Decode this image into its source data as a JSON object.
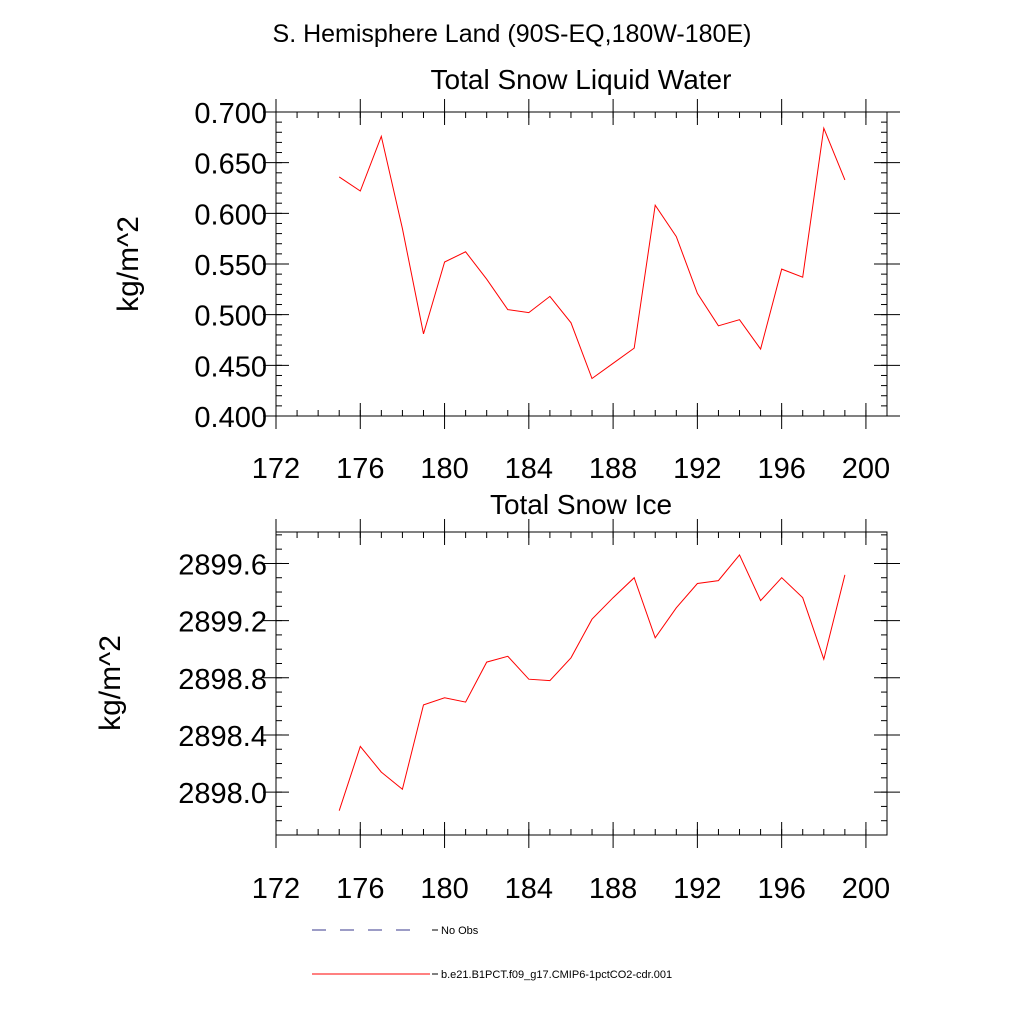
{
  "page_title": "S. Hemisphere Land (90S-EQ,180W-180E)",
  "chart_data": [
    {
      "type": "line",
      "title": "Total Snow Liquid Water",
      "xlabel": "",
      "ylabel": "kg/m^2",
      "xlim": [
        172,
        201
      ],
      "ylim": [
        0.4,
        0.7
      ],
      "x_ticks": [
        172,
        176,
        180,
        184,
        188,
        192,
        196,
        200
      ],
      "x_tick_labels": [
        "172",
        "176",
        "180",
        "184",
        "188",
        "192",
        "196",
        "200"
      ],
      "y_ticks": [
        0.4,
        0.45,
        0.5,
        0.55,
        0.6,
        0.65,
        0.7
      ],
      "y_tick_labels": [
        "0.400",
        "0.450",
        "0.500",
        "0.550",
        "0.600",
        "0.650",
        "0.700"
      ],
      "y_minor_step": 0.01,
      "x_minor_step": 1,
      "series": [
        {
          "name": "b.e21.B1PCT.f09_g17.CMIP6-1pctCO2-cdr.001",
          "color": "#ff0000",
          "x": [
            175,
            176,
            177,
            178,
            179,
            180,
            181,
            182,
            183,
            184,
            185,
            186,
            187,
            188,
            189,
            190,
            191,
            192,
            193,
            194,
            195,
            196,
            197,
            198,
            199
          ],
          "y": [
            0.636,
            0.622,
            0.676,
            0.585,
            0.481,
            0.552,
            0.562,
            0.535,
            0.505,
            0.502,
            0.518,
            0.492,
            0.437,
            0.452,
            0.467,
            0.608,
            0.577,
            0.521,
            0.489,
            0.495,
            0.466,
            0.545,
            0.537,
            0.684,
            0.633
          ]
        }
      ]
    },
    {
      "type": "line",
      "title": "Total Snow Ice",
      "xlabel": "",
      "ylabel": "kg/m^2",
      "xlim": [
        172,
        201
      ],
      "ylim": [
        2897.7,
        2899.82
      ],
      "x_ticks": [
        172,
        176,
        180,
        184,
        188,
        192,
        196,
        200
      ],
      "x_tick_labels": [
        "172",
        "176",
        "180",
        "184",
        "188",
        "192",
        "196",
        "200"
      ],
      "y_ticks": [
        2898.0,
        2898.4,
        2898.8,
        2899.2,
        2899.6
      ],
      "y_tick_labels": [
        "2898.0",
        "2898.4",
        "2898.8",
        "2899.2",
        "2899.6"
      ],
      "y_minor_step": 0.1,
      "x_minor_step": 1,
      "series": [
        {
          "name": "b.e21.B1PCT.f09_g17.CMIP6-1pctCO2-cdr.001",
          "color": "#ff0000",
          "x": [
            175,
            176,
            177,
            178,
            179,
            180,
            181,
            182,
            183,
            184,
            185,
            186,
            187,
            188,
            189,
            190,
            191,
            192,
            193,
            194,
            195,
            196,
            197,
            198,
            199
          ],
          "y": [
            2897.87,
            2898.32,
            2898.14,
            2898.02,
            2898.61,
            2898.66,
            2898.63,
            2898.91,
            2898.95,
            2898.79,
            2898.78,
            2898.94,
            2899.21,
            2899.36,
            2899.5,
            2899.08,
            2899.29,
            2899.46,
            2899.48,
            2899.66,
            2899.34,
            2899.5,
            2899.36,
            2898.93,
            2899.52
          ]
        }
      ]
    }
  ],
  "legend": {
    "items": [
      {
        "label": "No Obs",
        "color": "#3a3a8c",
        "style": "dashed"
      },
      {
        "label": "b.e21.B1PCT.f09_g17.CMIP6-1pctCO2-cdr.001",
        "color": "#ff0000",
        "style": "solid"
      }
    ]
  }
}
